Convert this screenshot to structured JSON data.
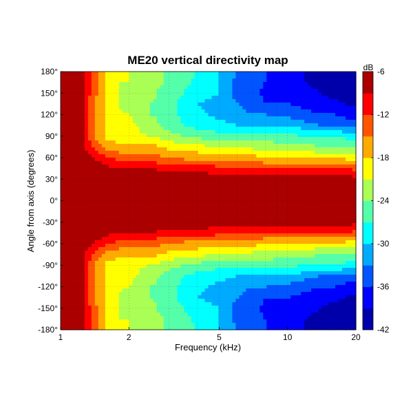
{
  "chart_data": {
    "type": "heatmap",
    "title": "ME20 vertical directivity map",
    "xlabel": "Frequency (kHz)",
    "ylabel": "Angle from axis (degrees)",
    "x_scale": "log",
    "xlim": [
      1,
      20
    ],
    "ylim": [
      -180,
      180
    ],
    "x_ticks": [
      1,
      2,
      5,
      10,
      20
    ],
    "x_tick_labels": [
      "1",
      "2",
      "5",
      "10",
      "20"
    ],
    "y_ticks": [
      180,
      150,
      120,
      90,
      60,
      30,
      0,
      -30,
      -60,
      -90,
      -120,
      -150,
      -180
    ],
    "y_tick_labels": [
      "180°",
      "150°",
      "120°",
      "90°",
      "60°",
      "30°",
      "0°",
      "-30°",
      "-60°",
      "-90°",
      "-120°",
      "-150°",
      "-180°"
    ],
    "grid": true,
    "colorbar": {
      "label": "dB",
      "range": [
        -42,
        -6
      ],
      "ticks": [
        -6,
        -12,
        -18,
        -24,
        -30,
        -36,
        -42
      ],
      "tick_labels": [
        "-6",
        "-12",
        "-18",
        "-24",
        "-30",
        "-36",
        "-42"
      ],
      "colormap": "jet"
    },
    "frequency_khz": [
      1,
      1.2,
      1.4,
      1.6,
      1.8,
      2,
      2.5,
      3,
      3.5,
      4,
      5,
      6,
      7,
      8,
      10,
      12,
      14,
      16,
      18,
      20
    ],
    "angle_deg": [
      0,
      15,
      30,
      45,
      60,
      75,
      90,
      105,
      120,
      135,
      150,
      165,
      180
    ],
    "level_db": [
      [
        -6,
        -6,
        -6,
        -6,
        -6,
        -6,
        -6,
        -6,
        -6,
        -6,
        -6,
        -6,
        -6
      ],
      [
        -6,
        -6,
        -6,
        -6,
        -6,
        -6,
        -6,
        -6,
        -6,
        -6,
        -6,
        -6,
        -6
      ],
      [
        -6,
        -6,
        -6,
        -6,
        -9,
        -13,
        -15,
        -15,
        -15,
        -15,
        -14,
        -14,
        -14
      ],
      [
        -6,
        -6,
        -6,
        -8,
        -12,
        -16,
        -19,
        -19,
        -19,
        -19,
        -18,
        -18,
        -18
      ],
      [
        -6,
        -6,
        -6,
        -9,
        -13,
        -17,
        -20,
        -20,
        -20,
        -21,
        -21,
        -21,
        -21
      ],
      [
        -6,
        -6,
        -6,
        -9,
        -14,
        -17,
        -20,
        -20,
        -21,
        -24,
        -22,
        -21,
        -21
      ],
      [
        -6,
        -6,
        -6,
        -9,
        -14,
        -17,
        -21,
        -23,
        -24,
        -24,
        -23,
        -22,
        -22
      ],
      [
        -6,
        -6,
        -6,
        -10,
        -15,
        -19,
        -23,
        -25,
        -25,
        -26,
        -26,
        -25,
        -25
      ],
      [
        -6,
        -6,
        -6,
        -10,
        -16,
        -20,
        -24,
        -27,
        -28,
        -28,
        -27,
        -26,
        -26
      ],
      [
        -6,
        -6,
        -7,
        -10,
        -16,
        -20,
        -25,
        -28,
        -29,
        -30,
        -29,
        -28,
        -27
      ],
      [
        -6,
        -6,
        -7,
        -11,
        -17,
        -21,
        -26,
        -29,
        -31,
        -31,
        -30,
        -30,
        -30
      ],
      [
        -6,
        -6,
        -7,
        -11,
        -17,
        -21,
        -26,
        -30,
        -32,
        -33,
        -34,
        -34,
        -33
      ],
      [
        -6,
        -6,
        -7,
        -11,
        -17,
        -22,
        -26,
        -30,
        -33,
        -34,
        -35,
        -35,
        -35
      ],
      [
        -6,
        -6,
        -7,
        -12,
        -18,
        -22,
        -26,
        -30,
        -33,
        -36,
        -37,
        -36,
        -36
      ],
      [
        -6,
        -6,
        -7,
        -12,
        -18,
        -23,
        -26,
        -30,
        -34,
        -36,
        -37,
        -38,
        -38
      ],
      [
        -6,
        -6,
        -7,
        -12,
        -18,
        -23,
        -27,
        -32,
        -35,
        -37,
        -38,
        -39,
        -39
      ],
      [
        -6,
        -6,
        -7,
        -12,
        -19,
        -24,
        -27,
        -33,
        -36,
        -38,
        -39,
        -40,
        -40
      ],
      [
        -6,
        -6,
        -7,
        -12,
        -19,
        -24,
        -27,
        -33,
        -36,
        -38,
        -40,
        -40,
        -40
      ],
      [
        -6,
        -6,
        -7,
        -12,
        -19,
        -24,
        -28,
        -34,
        -37,
        -39,
        -41,
        -41,
        -41
      ],
      [
        -6,
        -6,
        -8,
        -13,
        -20,
        -25,
        -29,
        -34,
        -37,
        -40,
        -41,
        -41,
        -40
      ]
    ]
  }
}
